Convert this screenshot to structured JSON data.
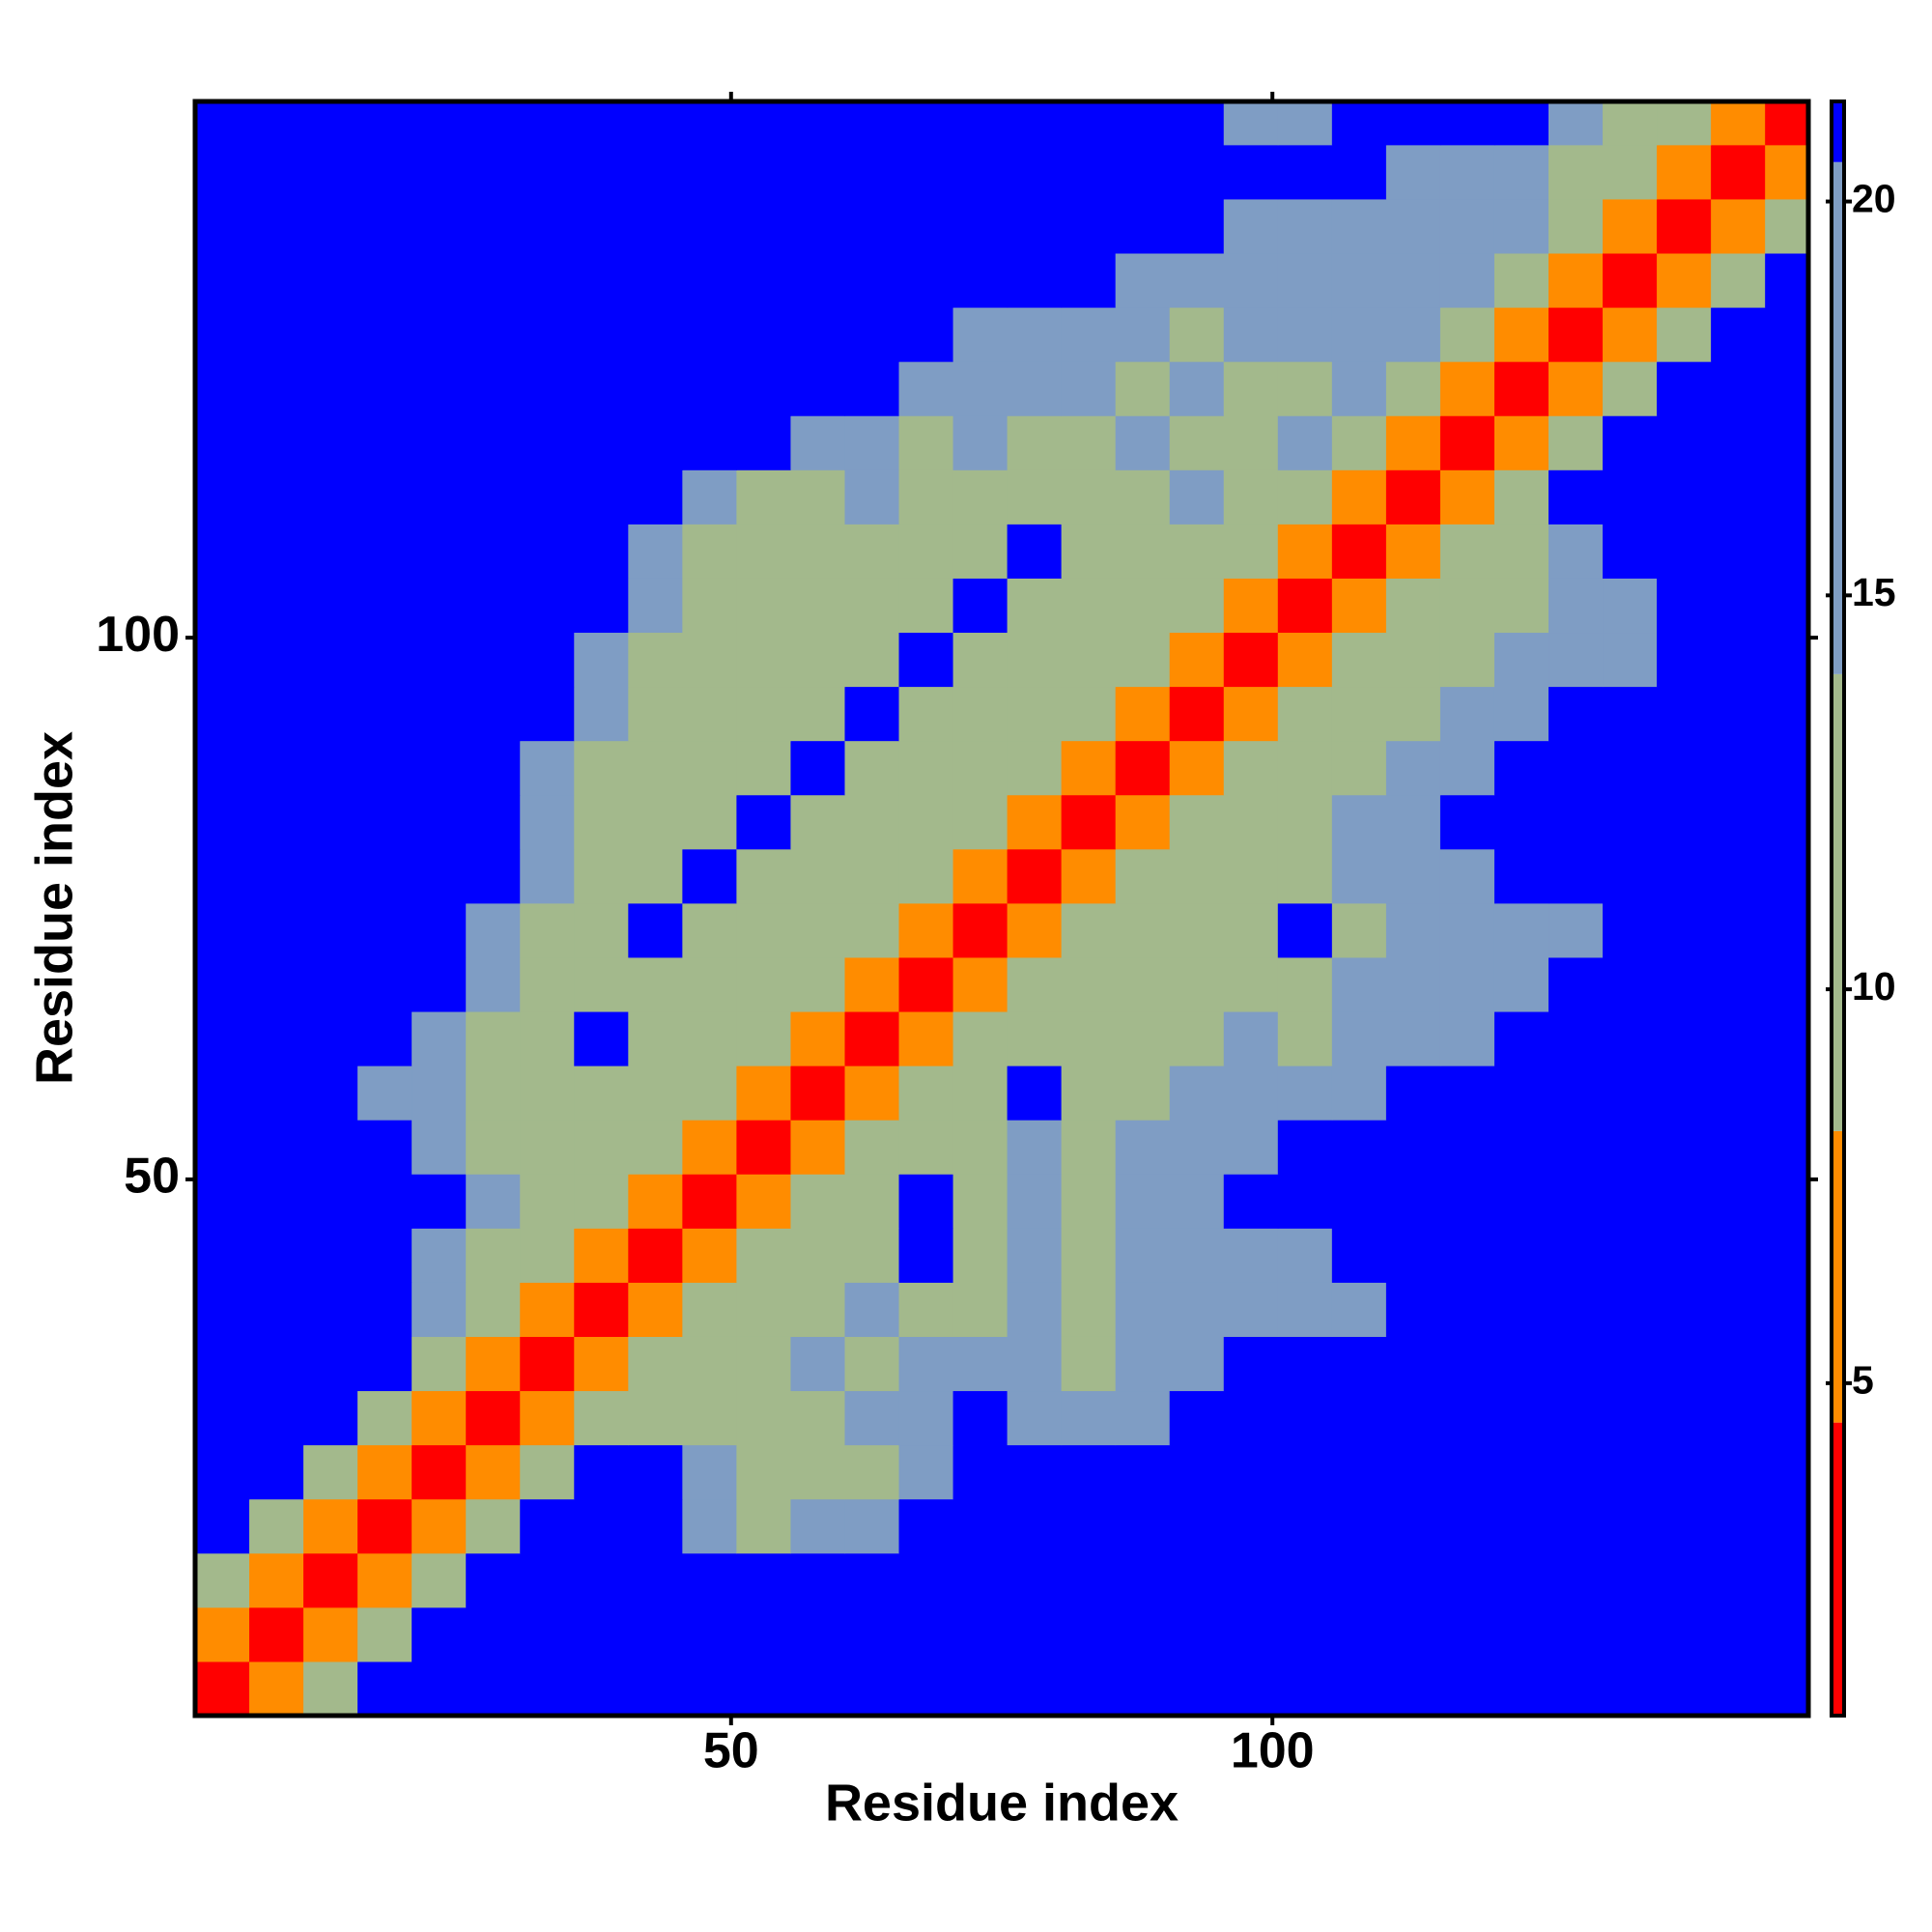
{
  "chart_data": {
    "type": "heatmap",
    "x_label": "Residue index",
    "y_label": "Residue index",
    "xlim": [
      0.5,
      149.5
    ],
    "ylim": [
      0.5,
      149.5
    ],
    "xticks": [
      50,
      100
    ],
    "yticks": [
      50,
      100
    ],
    "xbins": [
      0.5,
      5.5,
      10.5,
      15.5,
      20.5,
      25.5,
      30.5,
      35.5,
      40.5,
      45.5,
      50.5,
      55.5,
      60.5,
      65.5,
      70.5,
      75.5,
      80.5,
      85.5,
      90.5,
      95.5,
      100.5,
      105.5,
      110.5,
      115.5,
      120.5,
      125.5,
      130.5,
      135.5,
      140.5,
      145.5,
      150.5
    ],
    "ybins": [
      0.5,
      5.5,
      10.5,
      15.5,
      20.5,
      25.5,
      30.5,
      35.5,
      40.5,
      45.5,
      50.5,
      55.5,
      60.5,
      65.5,
      70.5,
      75.5,
      80.5,
      85.5,
      90.5,
      95.5,
      100.5,
      105.5,
      110.5,
      115.5,
      120.5,
      125.5,
      130.5,
      135.5,
      140.5,
      145.5,
      150.5
    ],
    "zlim": [
      0.78,
      21.27
    ],
    "zticks": [
      5,
      10,
      15,
      20
    ],
    "color_breaks": [
      4.5,
      8.2,
      14,
      20.5
    ],
    "colors": [
      "#ff0000",
      "#ff8c00",
      "#a3b98c",
      "#7f9dc4",
      "#0000ff"
    ],
    "z": [
      [
        2,
        6,
        11,
        21,
        21,
        21,
        21,
        21,
        21,
        21,
        21,
        21,
        21,
        21,
        21,
        21,
        21,
        21,
        21,
        21,
        21,
        21,
        21,
        21,
        21,
        21,
        21,
        21,
        21,
        21
      ],
      [
        6,
        2,
        6,
        11,
        21,
        21,
        21,
        21,
        21,
        21,
        21,
        21,
        21,
        21,
        21,
        21,
        21,
        21,
        21,
        21,
        21,
        21,
        21,
        21,
        21,
        21,
        21,
        21,
        21,
        21
      ],
      [
        11,
        6,
        2,
        6,
        11,
        21,
        21,
        21,
        21,
        21,
        21,
        21,
        21,
        21,
        21,
        21,
        21,
        21,
        21,
        21,
        21,
        21,
        21,
        21,
        21,
        21,
        21,
        21,
        21,
        21
      ],
      [
        21,
        11,
        6,
        2,
        6,
        11,
        21,
        21,
        21,
        16,
        14,
        17,
        15,
        21,
        21,
        21,
        21,
        21,
        21,
        21,
        21,
        21,
        21,
        21,
        21,
        21,
        21,
        21,
        21,
        21
      ],
      [
        21,
        21,
        11,
        6,
        2,
        6,
        11,
        21,
        21,
        15,
        12,
        14,
        13,
        17,
        21,
        21,
        21,
        21,
        21,
        21,
        21,
        21,
        21,
        21,
        21,
        21,
        21,
        21,
        21,
        21
      ],
      [
        21,
        21,
        21,
        11,
        6,
        2,
        6,
        11,
        13,
        12,
        9,
        14,
        15,
        17,
        21,
        16,
        18,
        17,
        21,
        21,
        21,
        21,
        21,
        21,
        21,
        21,
        21,
        21,
        21,
        21
      ],
      [
        21,
        21,
        21,
        21,
        11,
        6,
        2,
        6,
        11,
        14,
        13,
        16,
        12,
        15,
        18,
        17,
        14,
        16,
        18,
        21,
        21,
        21,
        21,
        21,
        21,
        21,
        21,
        21,
        21,
        21
      ],
      [
        21,
        21,
        21,
        21,
        16,
        11,
        6,
        2,
        6,
        11,
        13,
        9,
        15,
        12,
        14,
        16,
        13,
        15,
        17,
        16,
        18,
        19,
        21,
        21,
        21,
        21,
        21,
        21,
        21,
        21
      ],
      [
        21,
        21,
        21,
        21,
        15,
        13,
        11,
        6,
        2,
        6,
        11,
        14,
        12,
        21,
        13,
        16,
        14,
        17,
        15,
        18,
        19,
        21,
        21,
        21,
        21,
        21,
        21,
        21,
        21,
        21
      ],
      [
        21,
        21,
        21,
        21,
        21,
        16,
        14,
        11,
        6,
        2,
        6,
        11,
        13,
        21,
        12,
        15,
        14,
        17,
        18,
        21,
        21,
        21,
        21,
        21,
        21,
        21,
        21,
        21,
        21,
        21
      ],
      [
        21,
        21,
        21,
        21,
        17,
        14,
        13,
        12,
        11,
        6,
        2,
        6,
        11,
        14,
        9,
        16,
        13,
        15,
        17,
        18,
        21,
        21,
        21,
        21,
        21,
        21,
        21,
        21,
        21,
        21
      ],
      [
        21,
        21,
        21,
        18,
        15,
        13,
        9,
        12,
        14,
        11,
        6,
        2,
        6,
        11,
        13,
        21,
        12,
        14,
        16,
        15,
        17,
        19,
        21,
        21,
        21,
        21,
        21,
        21,
        21,
        21
      ],
      [
        21,
        21,
        21,
        21,
        16,
        12,
        14,
        21,
        13,
        12,
        11,
        6,
        2,
        6,
        11,
        12,
        9,
        14,
        13,
        15,
        14,
        16,
        17,
        19,
        21,
        21,
        21,
        21,
        21,
        21
      ],
      [
        21,
        21,
        21,
        21,
        21,
        15,
        13,
        12,
        9,
        14,
        13,
        11,
        6,
        2,
        6,
        11,
        13,
        12,
        9,
        14,
        13,
        15,
        16,
        17,
        18,
        21,
        21,
        21,
        21,
        21
      ],
      [
        21,
        21,
        21,
        21,
        21,
        17,
        14,
        13,
        21,
        12,
        13,
        14,
        11,
        6,
        2,
        6,
        11,
        12,
        14,
        13,
        21,
        14,
        15,
        16,
        17,
        19,
        21,
        21,
        21,
        21
      ],
      [
        21,
        21,
        21,
        21,
        21,
        21,
        15,
        12,
        13,
        21,
        14,
        12,
        13,
        11,
        6,
        2,
        6,
        11,
        12,
        14,
        13,
        15,
        16,
        18,
        21,
        21,
        21,
        21,
        21,
        21
      ],
      [
        21,
        21,
        21,
        21,
        21,
        21,
        16,
        13,
        12,
        14,
        21,
        13,
        12,
        14,
        11,
        6,
        2,
        6,
        11,
        13,
        14,
        15,
        17,
        21,
        21,
        21,
        21,
        21,
        21,
        21
      ],
      [
        21,
        21,
        21,
        21,
        21,
        21,
        17,
        14,
        13,
        12,
        14,
        21,
        13,
        12,
        14,
        11,
        6,
        2,
        6,
        11,
        12,
        14,
        15,
        17,
        21,
        21,
        21,
        21,
        21,
        21
      ],
      [
        21,
        21,
        21,
        21,
        21,
        21,
        21,
        15,
        13,
        14,
        12,
        13,
        21,
        14,
        13,
        12,
        11,
        6,
        2,
        6,
        11,
        13,
        14,
        16,
        18,
        21,
        21,
        21,
        21,
        21
      ],
      [
        21,
        21,
        21,
        21,
        21,
        21,
        21,
        16,
        14,
        12,
        13,
        14,
        13,
        21,
        12,
        13,
        14,
        11,
        6,
        2,
        6,
        11,
        12,
        14,
        15,
        16,
        18,
        21,
        21,
        21
      ],
      [
        21,
        21,
        21,
        21,
        21,
        21,
        21,
        21,
        15,
        13,
        14,
        12,
        13,
        14,
        21,
        13,
        12,
        14,
        11,
        6,
        2,
        6,
        11,
        13,
        14,
        16,
        18,
        21,
        21,
        21
      ],
      [
        21,
        21,
        21,
        21,
        21,
        21,
        21,
        21,
        16,
        14,
        13,
        12,
        14,
        13,
        12,
        21,
        13,
        14,
        13,
        11,
        6,
        2,
        6,
        11,
        14,
        17,
        21,
        21,
        21,
        21
      ],
      [
        21,
        21,
        21,
        21,
        21,
        21,
        21,
        21,
        21,
        16,
        14,
        13,
        15,
        13,
        14,
        12,
        14,
        13,
        15,
        14,
        11,
        6,
        2,
        6,
        11,
        21,
        21,
        21,
        21,
        21
      ],
      [
        21,
        21,
        21,
        21,
        21,
        21,
        21,
        21,
        21,
        21,
        21,
        17,
        15,
        14,
        16,
        13,
        14,
        15,
        13,
        14,
        15,
        11,
        6,
        2,
        6,
        11,
        21,
        21,
        21,
        21
      ],
      [
        21,
        21,
        21,
        21,
        21,
        21,
        21,
        21,
        21,
        21,
        21,
        21,
        21,
        18,
        16,
        15,
        17,
        14,
        15,
        13,
        14,
        16,
        11,
        6,
        2,
        6,
        11,
        21,
        21,
        21
      ],
      [
        21,
        21,
        21,
        21,
        21,
        21,
        21,
        21,
        21,
        21,
        21,
        21,
        21,
        21,
        18,
        17,
        16,
        15,
        14,
        16,
        15,
        17,
        16,
        11,
        6,
        2,
        6,
        11,
        21,
        21
      ],
      [
        21,
        21,
        21,
        21,
        21,
        21,
        21,
        21,
        21,
        21,
        21,
        21,
        21,
        21,
        21,
        21,
        21,
        18,
        17,
        16,
        17,
        16,
        17,
        15,
        11,
        6,
        2,
        6,
        11,
        21
      ],
      [
        21,
        21,
        21,
        21,
        21,
        21,
        21,
        21,
        21,
        21,
        21,
        21,
        21,
        21,
        21,
        21,
        21,
        21,
        21,
        18,
        17,
        18,
        17,
        16,
        15,
        11,
        6,
        2,
        6,
        11
      ],
      [
        21,
        21,
        21,
        21,
        21,
        21,
        21,
        21,
        21,
        21,
        21,
        21,
        21,
        21,
        21,
        21,
        21,
        21,
        21,
        21,
        21,
        21,
        19,
        18,
        16,
        14,
        11,
        6,
        2,
        6
      ],
      [
        21,
        21,
        21,
        21,
        21,
        21,
        21,
        21,
        21,
        21,
        21,
        21,
        21,
        21,
        21,
        21,
        21,
        21,
        21,
        19,
        18,
        21,
        21,
        21,
        21,
        17,
        14,
        11,
        6,
        2
      ]
    ]
  }
}
